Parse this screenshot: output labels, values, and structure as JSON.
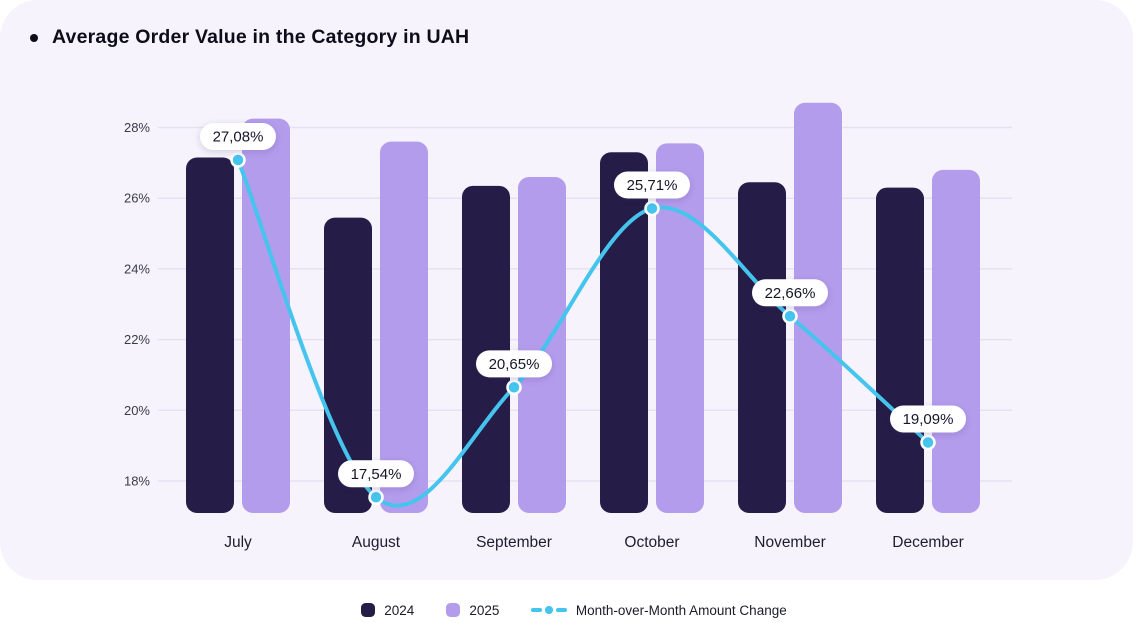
{
  "header": {
    "title": "Average Order Value in the Category in UAH"
  },
  "chart_data": {
    "type": "bar",
    "categories": [
      "July",
      "August",
      "September",
      "October",
      "November",
      "December"
    ],
    "series": [
      {
        "name": "2024",
        "color": "#251d47",
        "values": [
          27.15,
          25.45,
          26.35,
          27.3,
          26.45,
          26.3
        ]
      },
      {
        "name": "2025",
        "color": "#b49cec",
        "values": [
          28.25,
          27.6,
          26.6,
          27.55,
          28.7,
          26.8
        ]
      }
    ],
    "line_series": {
      "name": "Month-over-Month Amount Change",
      "type": "line",
      "color": "#45c4ee",
      "values": [
        27.08,
        17.54,
        20.65,
        25.71,
        22.66,
        19.09
      ],
      "point_labels": [
        "27,08%",
        "17,54%",
        "20,65%",
        "25,71%",
        "22,66%",
        "19,09%"
      ]
    },
    "y_axis": {
      "ticks": [
        18,
        20,
        22,
        24,
        26,
        28
      ],
      "labels": [
        "18%",
        "20%",
        "22%",
        "24%",
        "26%",
        "28%"
      ]
    },
    "ylim": [
      17.1,
      28.9
    ],
    "grid": "horizontal",
    "legend_position": "bottom"
  },
  "legend": {
    "items": [
      {
        "label": "2024",
        "swatch": "square",
        "color": "#251d47"
      },
      {
        "label": "2025",
        "swatch": "square",
        "color": "#b49cec"
      },
      {
        "label": "Month-over-Month Amount Change",
        "swatch": "dash-dot",
        "color": "#45c4ee"
      }
    ]
  },
  "colors": {
    "card_background": "#f6f3fc",
    "page_background": "#ffffff",
    "gridline": "#e6e1f2",
    "axis_text": "#3a3a48",
    "month_text": "#1d1d2f",
    "pill_background": "#ffffff",
    "pill_text": "#15152a",
    "bar_2024": "#251d47",
    "bar_2025": "#b49cec",
    "line": "#45c4ee"
  }
}
